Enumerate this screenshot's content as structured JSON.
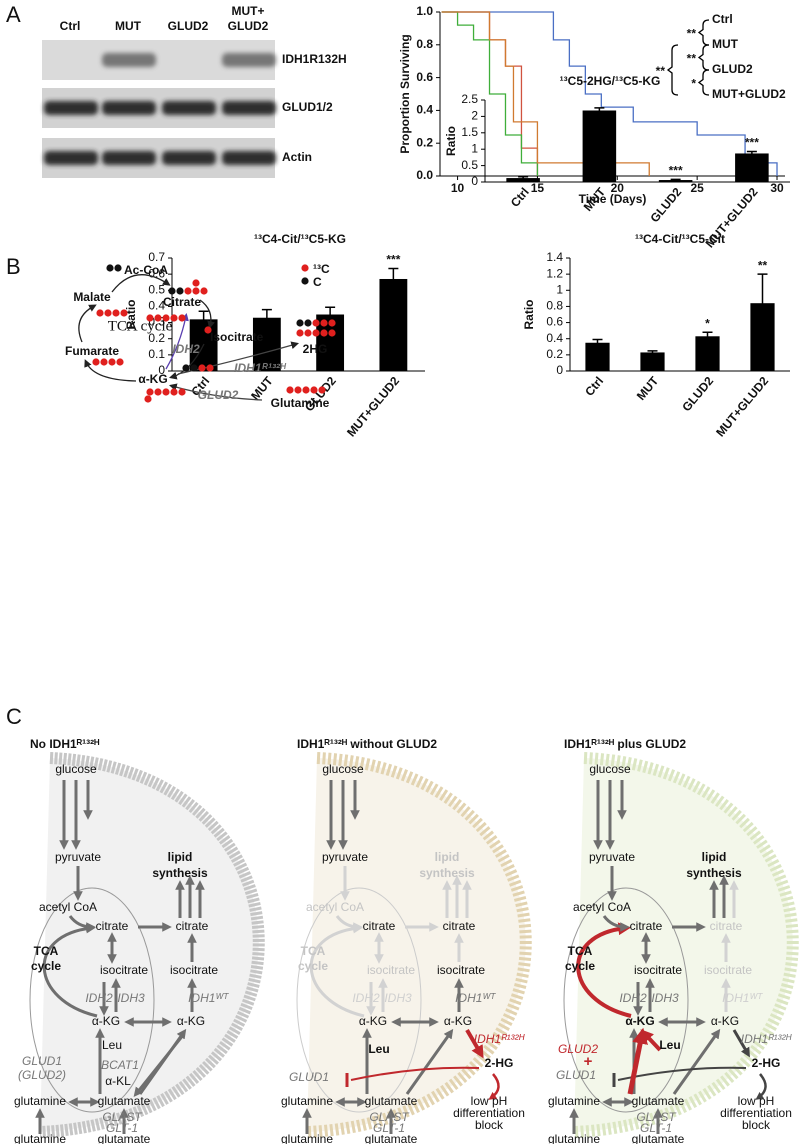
{
  "panel_labels": [
    "A",
    "B",
    "C"
  ],
  "blot": {
    "lanes": [
      [
        "Ctrl"
      ],
      [
        "MUT"
      ],
      [
        "GLUD2"
      ],
      [
        "MUT+",
        "GLUD2"
      ]
    ],
    "rows": [
      "IDH1R132H",
      "GLUD1/2",
      "Actin"
    ]
  },
  "chart_data": [
    {
      "type": "step",
      "xlabel": "Time (Days)",
      "ylabel": "Proportion Surviving",
      "xlim": [
        8.9,
        30.5
      ],
      "xticks": [
        10,
        15,
        20,
        25,
        30
      ],
      "ylim": [
        0,
        1
      ],
      "yticks": [
        {
          "value": 0,
          "label": "0.0"
        },
        {
          "value": 0.2,
          "label": "0.2"
        },
        {
          "value": 0.4,
          "label": "0.4"
        },
        {
          "value": 0.6,
          "label": "0.6"
        },
        {
          "value": 0.8,
          "label": "0.8"
        },
        {
          "value": 1,
          "label": "1.0"
        }
      ],
      "series": [
        {
          "name": "Ctrl",
          "color": "#d0533f",
          "x": [
            9,
            12,
            13,
            14,
            15
          ],
          "values": [
            1,
            0.83,
            0.67,
            0.17,
            0
          ]
        },
        {
          "name": "MUT",
          "color": "#4a6fc4",
          "x": [
            9,
            16,
            17,
            18,
            19,
            21,
            25,
            28,
            30
          ],
          "values": [
            1,
            0.83,
            0.67,
            0.5,
            0.42,
            0.33,
            0.25,
            0.08,
            0
          ]
        },
        {
          "name": "GLUD2",
          "color": "#3fae3a",
          "x": [
            9,
            10,
            11,
            12,
            13,
            14,
            15
          ],
          "values": [
            1,
            0.92,
            0.83,
            0.5,
            0.25,
            0.08,
            0
          ]
        },
        {
          "name": "MUT+GLUD2",
          "color": "#d07a30",
          "x": [
            9,
            12,
            13,
            13.5,
            15,
            22
          ],
          "values": [
            1,
            0.83,
            0.67,
            0.33,
            0.08,
            0
          ]
        }
      ],
      "annotations": [
        "**",
        "**",
        "*",
        "**"
      ]
    },
    {
      "type": "bar",
      "title": "¹³C5-2HG/¹³C5-KG",
      "ylabel": "Ratio",
      "categories": [
        "Ctrl",
        "MUT",
        "GLUD2",
        "MUT+GLUD2"
      ],
      "values": [
        0.12,
        2.18,
        0.06,
        0.87
      ],
      "errors": [
        0.04,
        0.08,
        0.02,
        0.06
      ],
      "annotations": [
        null,
        null,
        "***",
        "***"
      ],
      "color": "#000000",
      "ylim": [
        0,
        2.5
      ],
      "yticks": [
        0,
        0.5,
        1,
        1.5,
        2,
        2.5
      ]
    },
    {
      "type": "bar",
      "title": "¹³C4-Cit/¹³C5-KG",
      "ylabel": "Ratio",
      "categories": [
        "Ctrl",
        "MUT",
        "GLUD2",
        "MUT+GLUD2"
      ],
      "values": [
        0.32,
        0.33,
        0.35,
        0.57
      ],
      "errors": [
        0.05,
        0.05,
        0.045,
        0.065
      ],
      "annotations": [
        null,
        null,
        null,
        "***"
      ],
      "color": "#000000",
      "ylim": [
        0,
        0.7
      ],
      "yticks": [
        0,
        0.1,
        0.2,
        0.3,
        0.4,
        0.5,
        0.6,
        0.7
      ]
    },
    {
      "type": "bar",
      "title": "¹³C4-Cit/¹³C5-Cit",
      "ylabel": "Ratio",
      "categories": [
        "Ctrl",
        "MUT",
        "GLUD2",
        "MUT+GLUD2"
      ],
      "values": [
        0.35,
        0.23,
        0.43,
        0.84
      ],
      "errors": [
        0.04,
        0.02,
        0.05,
        0.36
      ],
      "annotations": [
        null,
        null,
        "*",
        "**"
      ],
      "color": "#000000",
      "ylim": [
        0,
        1.4
      ],
      "yticks": [
        0,
        0.2,
        0.4,
        0.6,
        0.8,
        1,
        1.2,
        1.4
      ]
    }
  ],
  "tca_diagram": {
    "labels": [
      "Ac-CoA",
      "Malate",
      "Citrate",
      "TCA cycle",
      "Isocitrate",
      "IDH2",
      "Fumarate",
      "α-KG",
      "IDH1ᴿ¹³²ᴴ",
      "2HG",
      "GLUD2",
      "Glutamine",
      "¹³C",
      "C"
    ]
  },
  "pathways": [
    {
      "title": "No IDH1ᴿ¹³²ᴴ",
      "labels": [
        "glucose",
        "pyruvate",
        "lipid",
        "synthesis",
        "acetyl CoA",
        "citrate",
        "citrate",
        "TCA",
        "cycle",
        "isocitrate",
        "isocitrate",
        "IDH2",
        "IDH3",
        "IDH1ᵂᵀ",
        "α-KG",
        "α-KG",
        "Leu",
        "GLUD1",
        "(GLUD2)",
        "BCAT1",
        "α-KL",
        "glutamine",
        "glutamate",
        "GLAST",
        "GLT-1",
        "glutamine",
        "glutamate"
      ]
    },
    {
      "title": "IDH1ᴿ¹³²ᴴ without GLUD2",
      "labels": [
        "glucose",
        "pyruvate",
        "lipid",
        "synthesis",
        "acetyl CoA",
        "citrate",
        "citrate",
        "TCA",
        "cycle",
        "isocitrate",
        "isocitrate",
        "IDH2",
        "IDH3",
        "IDH1ᵂᵀ",
        "α-KG",
        "α-KG",
        "Leu",
        "IDH1ᴿ¹³²ᴴ",
        "2-HG",
        "GLUD1",
        "glutamine",
        "glutamate",
        "low pH",
        "differentiation",
        "block",
        "GLAST",
        "GLT-1",
        "glutamine",
        "glutamate"
      ]
    },
    {
      "title": "IDH1ᴿ¹³²ᴴ plus GLUD2",
      "labels": [
        "glucose",
        "pyruvate",
        "lipid",
        "synthesis",
        "acetyl CoA",
        "citrate",
        "citrate",
        "TCA",
        "cycle",
        "isocitrate",
        "isocitrate",
        "IDH2",
        "IDH3",
        "IDH1ᵂᵀ",
        "α-KG",
        "α-KG",
        "Leu",
        "IDH1ᴿ¹³²ᴴ",
        "2-HG",
        "GLUD2",
        "+",
        "GLUD1",
        "glutamine",
        "glutamate",
        "low pH",
        "differentiation",
        "block",
        "GLAST",
        "GLT-1",
        "glutamine",
        "glutamate"
      ]
    }
  ]
}
